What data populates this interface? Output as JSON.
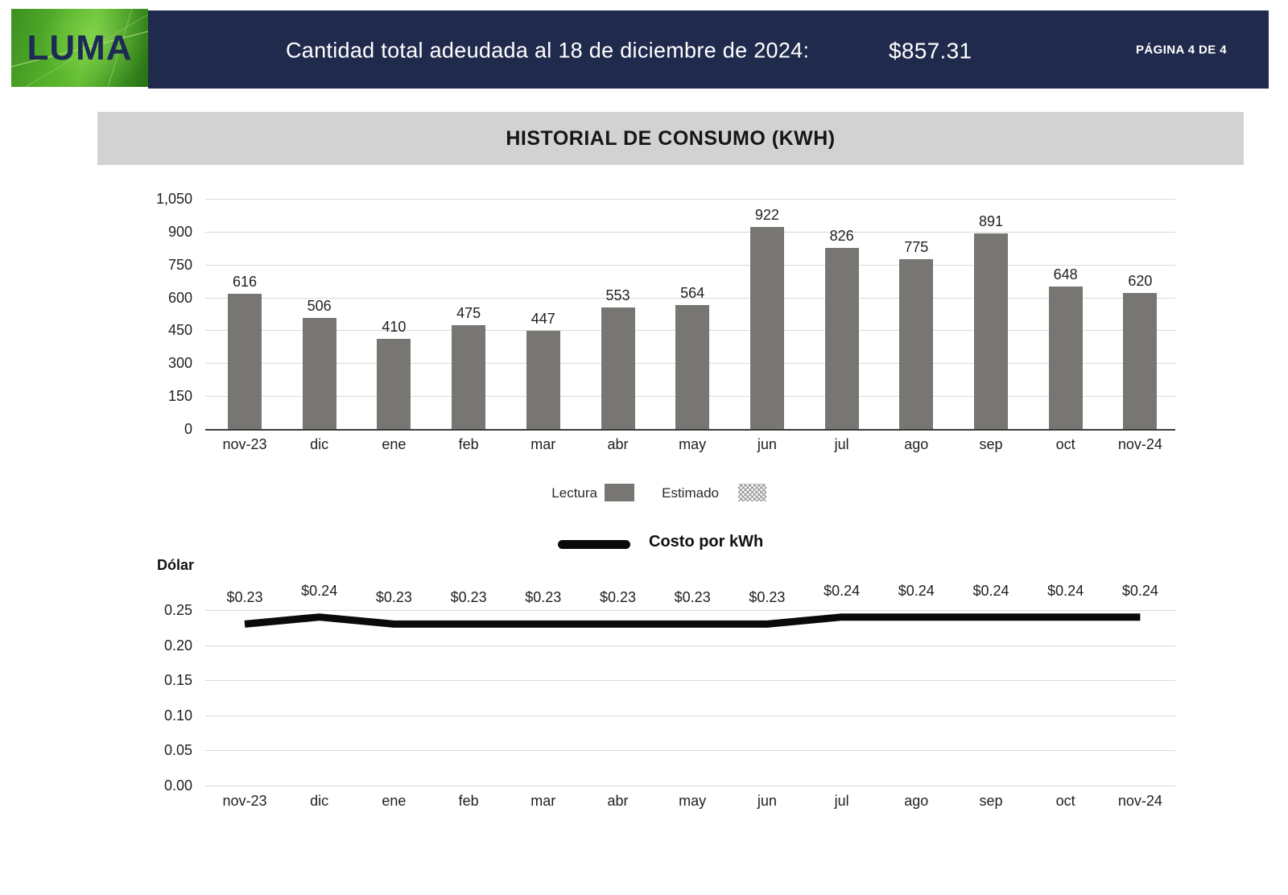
{
  "header": {
    "logo_text": "LUMA",
    "title": "Cantidad total adeudada al 18 de diciembre de 2024:",
    "amount": "$857.31",
    "page_label": "PÁGINA 4 DE 4"
  },
  "section": {
    "title": "HISTORIAL DE CONSUMO (KWH)"
  },
  "legend": {
    "lectura_label": "Lectura",
    "estimado_label": "Estimado",
    "costo_label": "Costo por kWh"
  },
  "colors": {
    "navy": "#202a4c",
    "logo_green": "#58b32c",
    "band_gray": "#d2d2d2",
    "bar_gray": "#787673",
    "gridline": "#d9d9d9",
    "axis_line": "#3c3c3c",
    "cost_line": "#0a0a0a"
  },
  "chart_data": [
    {
      "type": "bar",
      "title": "HISTORIAL DE CONSUMO (KWH)",
      "series_name": "Lectura",
      "categories": [
        "nov-23",
        "dic",
        "ene",
        "feb",
        "mar",
        "abr",
        "may",
        "jun",
        "jul",
        "ago",
        "sep",
        "oct",
        "nov-24"
      ],
      "values": [
        616,
        506,
        410,
        475,
        447,
        553,
        564,
        922,
        826,
        775,
        891,
        648,
        620
      ],
      "bar_labels": [
        "616",
        "506",
        "410",
        "475",
        "447",
        "553",
        "564",
        "922",
        "826",
        "775",
        "891",
        "648",
        "620"
      ],
      "ylim": [
        0,
        1050
      ],
      "ytick_step": 150,
      "ytick_labels": [
        "1,050",
        "900",
        "750",
        "600",
        "450",
        "300",
        "150",
        "0"
      ],
      "grid": true,
      "legend": [
        "Lectura",
        "Estimado"
      ],
      "legend_position": "bottom"
    },
    {
      "type": "line",
      "name": "Costo por kWh",
      "ylabel": "Dólar",
      "categories": [
        "nov-23",
        "dic",
        "ene",
        "feb",
        "mar",
        "abr",
        "may",
        "jun",
        "jul",
        "ago",
        "sep",
        "oct",
        "nov-24"
      ],
      "values": [
        0.23,
        0.24,
        0.23,
        0.23,
        0.23,
        0.23,
        0.23,
        0.23,
        0.24,
        0.24,
        0.24,
        0.24,
        0.24
      ],
      "point_labels": [
        "$0.23",
        "$0.24",
        "$0.23",
        "$0.23",
        "$0.23",
        "$0.23",
        "$0.23",
        "$0.23",
        "$0.24",
        "$0.24",
        "$0.24",
        "$0.24",
        "$0.24"
      ],
      "ylim": [
        0,
        0.25
      ],
      "ytick_step": 0.05,
      "ytick_labels": [
        "0.25",
        "0.20",
        "0.15",
        "0.10",
        "0.05",
        "0.00"
      ],
      "grid": true,
      "legend_position": "top"
    }
  ]
}
